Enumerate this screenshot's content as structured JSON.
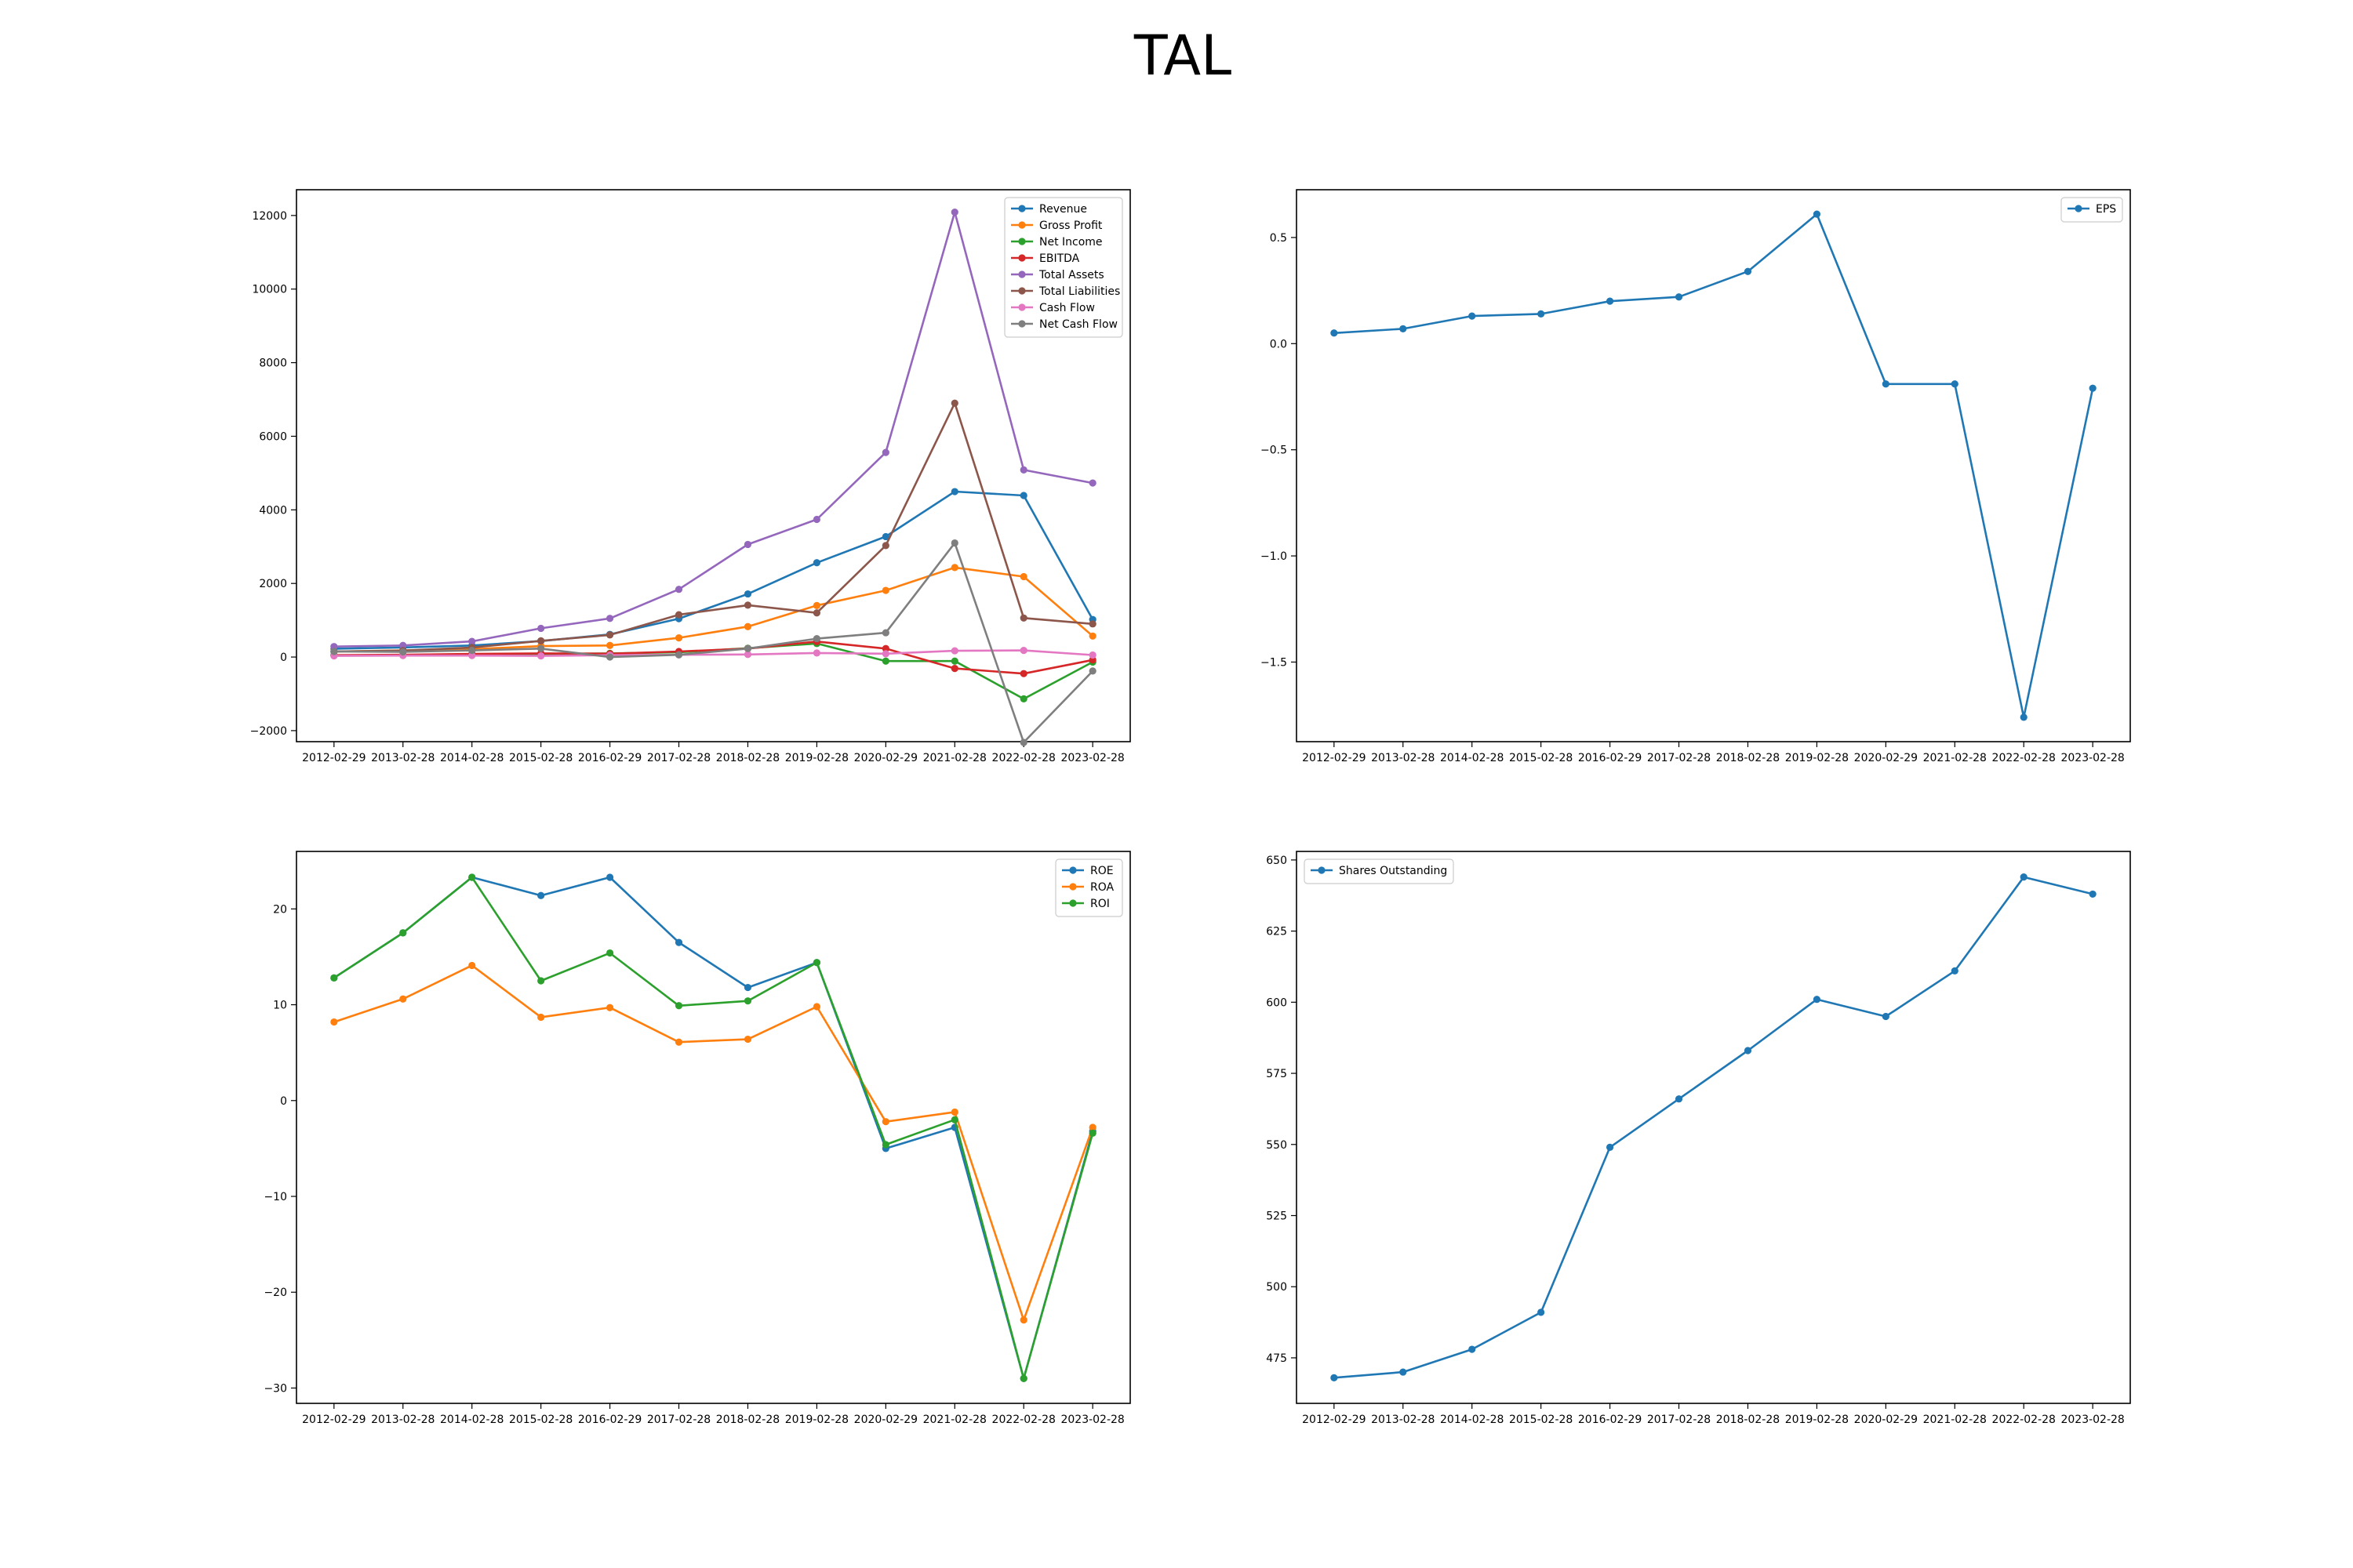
{
  "figure": {
    "title": "TAL"
  },
  "chart_data": [
    {
      "type": "line",
      "x": [
        "2012-02-29",
        "2013-02-28",
        "2014-02-28",
        "2015-02-28",
        "2016-02-29",
        "2017-02-28",
        "2018-02-28",
        "2019-02-28",
        "2020-02-29",
        "2021-02-28",
        "2022-02-28",
        "2023-02-28"
      ],
      "ylim": [
        -2300,
        12700
      ],
      "yticks": [
        -2000,
        0,
        2000,
        4000,
        6000,
        8000,
        10000,
        12000
      ],
      "ytick_labels": [
        "−2000",
        "0",
        "2000",
        "4000",
        "6000",
        "8000",
        "10000",
        "12000"
      ],
      "grid": false,
      "legend_position": "upper right",
      "series": [
        {
          "name": "Revenue",
          "color": "#1f77b4",
          "values": [
            226,
            262,
            314,
            434,
            615,
            1043,
            1715,
            2563,
            3273,
            4496,
            4390,
            1020
          ]
        },
        {
          "name": "Gross Profit",
          "color": "#ff7f0e",
          "values": [
            151,
            180,
            214,
            297,
            315,
            520,
            827,
            1400,
            1811,
            2432,
            2185,
            570
          ]
        },
        {
          "name": "Net Income",
          "color": "#2ca02c",
          "values": [
            40,
            50,
            70,
            80,
            100,
            128,
            240,
            367,
            -110,
            -110,
            -1136,
            -136
          ]
        },
        {
          "name": "EBITDA",
          "color": "#d62728",
          "values": [
            50,
            60,
            85,
            100,
            90,
            150,
            230,
            420,
            230,
            -310,
            -450,
            -80
          ]
        },
        {
          "name": "Total Assets",
          "color": "#9467bd",
          "values": [
            285,
            315,
            425,
            780,
            1050,
            1840,
            3060,
            3740,
            5560,
            12090,
            5085,
            4730
          ]
        },
        {
          "name": "Total Liabilities",
          "color": "#8c564b",
          "values": [
            150,
            175,
            260,
            440,
            600,
            1150,
            1410,
            1200,
            3030,
            6900,
            1060,
            900
          ]
        },
        {
          "name": "Cash Flow",
          "color": "#e377c2",
          "values": [
            30,
            40,
            40,
            30,
            50,
            60,
            70,
            110,
            90,
            170,
            180,
            55
          ]
        },
        {
          "name": "Net Cash Flow",
          "color": "#7f7f7f",
          "values": [
            150,
            140,
            180,
            230,
            0,
            60,
            230,
            500,
            660,
            3100,
            -2320,
            -380
          ]
        }
      ]
    },
    {
      "type": "line",
      "x": [
        "2012-02-29",
        "2013-02-28",
        "2014-02-28",
        "2015-02-28",
        "2016-02-29",
        "2017-02-28",
        "2018-02-28",
        "2019-02-28",
        "2020-02-29",
        "2021-02-28",
        "2022-02-28",
        "2023-02-28"
      ],
      "ylim": [
        -1.875,
        0.725
      ],
      "yticks": [
        -1.5,
        -1.0,
        -0.5,
        0.0,
        0.5
      ],
      "ytick_labels": [
        "−1.5",
        "−1.0",
        "−0.5",
        "0.0",
        "0.5"
      ],
      "grid": false,
      "legend_position": "upper right",
      "series": [
        {
          "name": "EPS",
          "color": "#1f77b4",
          "values": [
            0.05,
            0.07,
            0.13,
            0.14,
            0.2,
            0.22,
            0.34,
            0.61,
            -0.19,
            -0.19,
            -1.76,
            -0.21
          ]
        }
      ]
    },
    {
      "type": "line",
      "x": [
        "2012-02-29",
        "2013-02-28",
        "2014-02-28",
        "2015-02-28",
        "2016-02-29",
        "2017-02-28",
        "2018-02-28",
        "2019-02-28",
        "2020-02-29",
        "2021-02-28",
        "2022-02-28",
        "2023-02-28"
      ],
      "ylim": [
        -31.6,
        26.0
      ],
      "yticks": [
        -30,
        -20,
        -10,
        0,
        10,
        20
      ],
      "ytick_labels": [
        "−30",
        "−20",
        "−10",
        "0",
        "10",
        "20"
      ],
      "grid": false,
      "legend_position": "upper right",
      "series": [
        {
          "name": "ROE",
          "color": "#1f77b4",
          "values": [
            12.8,
            17.5,
            23.3,
            21.4,
            23.3,
            16.5,
            11.8,
            14.4,
            -5.0,
            -2.8,
            -29.0,
            -3.2
          ]
        },
        {
          "name": "ROA",
          "color": "#ff7f0e",
          "values": [
            8.2,
            10.6,
            14.1,
            8.7,
            9.7,
            6.1,
            6.4,
            9.8,
            -2.2,
            -1.2,
            -22.9,
            -2.8
          ]
        },
        {
          "name": "ROI",
          "color": "#2ca02c",
          "values": [
            12.8,
            17.5,
            23.3,
            12.5,
            15.4,
            9.9,
            10.4,
            14.4,
            -4.6,
            -2.0,
            -29.0,
            -3.4
          ]
        }
      ]
    },
    {
      "type": "line",
      "x": [
        "2012-02-29",
        "2013-02-28",
        "2014-02-28",
        "2015-02-28",
        "2016-02-29",
        "2017-02-28",
        "2018-02-28",
        "2019-02-28",
        "2020-02-29",
        "2021-02-28",
        "2022-02-28",
        "2023-02-28"
      ],
      "ylim": [
        459,
        653
      ],
      "yticks": [
        475,
        500,
        525,
        550,
        575,
        600,
        625,
        650
      ],
      "ytick_labels": [
        "475",
        "500",
        "525",
        "550",
        "575",
        "600",
        "625",
        "650"
      ],
      "grid": false,
      "legend_position": "upper left",
      "series": [
        {
          "name": "Shares Outstanding",
          "color": "#1f77b4",
          "values": [
            468,
            470,
            478,
            491,
            549,
            566,
            583,
            601,
            595,
            611,
            644,
            638
          ]
        }
      ]
    }
  ]
}
